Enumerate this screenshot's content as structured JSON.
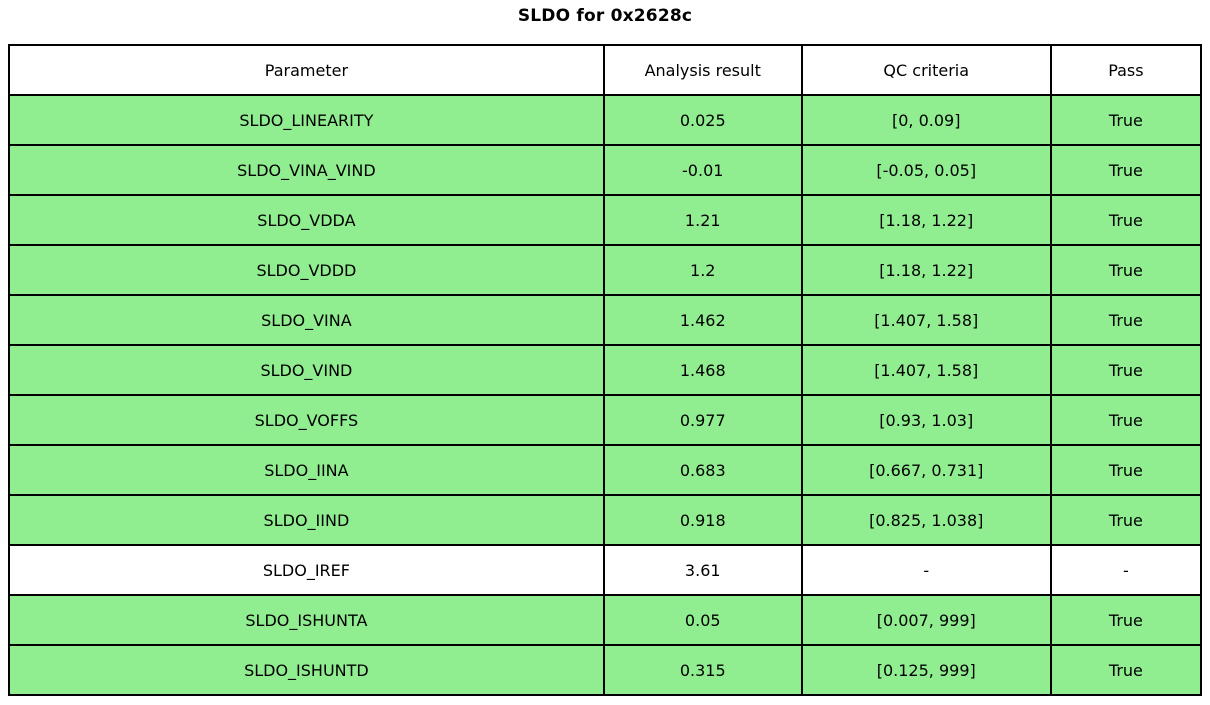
{
  "title": "SLDO for 0x2628c",
  "colors": {
    "pass_row_bg": "#90ee90",
    "neutral_row_bg": "#ffffff",
    "header_bg": "#ffffff",
    "border": "#000000",
    "text": "#000000"
  },
  "chart_data": {
    "type": "table",
    "title": "SLDO for 0x2628c",
    "columns": [
      "Parameter",
      "Analysis result",
      "QC criteria",
      "Pass"
    ],
    "column_widths_pct": [
      49.9,
      16.6,
      20.9,
      12.6
    ],
    "rows": [
      {
        "cells": [
          "SLDO_LINEARITY",
          "0.025",
          "[0, 0.09]",
          "True"
        ],
        "bg": "#90ee90"
      },
      {
        "cells": [
          "SLDO_VINA_VIND",
          "-0.01",
          "[-0.05, 0.05]",
          "True"
        ],
        "bg": "#90ee90"
      },
      {
        "cells": [
          "SLDO_VDDA",
          "1.21",
          "[1.18, 1.22]",
          "True"
        ],
        "bg": "#90ee90"
      },
      {
        "cells": [
          "SLDO_VDDD",
          "1.2",
          "[1.18, 1.22]",
          "True"
        ],
        "bg": "#90ee90"
      },
      {
        "cells": [
          "SLDO_VINA",
          "1.462",
          "[1.407, 1.58]",
          "True"
        ],
        "bg": "#90ee90"
      },
      {
        "cells": [
          "SLDO_VIND",
          "1.468",
          "[1.407, 1.58]",
          "True"
        ],
        "bg": "#90ee90"
      },
      {
        "cells": [
          "SLDO_VOFFS",
          "0.977",
          "[0.93, 1.03]",
          "True"
        ],
        "bg": "#90ee90"
      },
      {
        "cells": [
          "SLDO_IINA",
          "0.683",
          "[0.667, 0.731]",
          "True"
        ],
        "bg": "#90ee90"
      },
      {
        "cells": [
          "SLDO_IIND",
          "0.918",
          "[0.825, 1.038]",
          "True"
        ],
        "bg": "#90ee90"
      },
      {
        "cells": [
          "SLDO_IREF",
          "3.61",
          "-",
          "-"
        ],
        "bg": "#ffffff"
      },
      {
        "cells": [
          "SLDO_ISHUNTA",
          "0.05",
          "[0.007, 999]",
          "True"
        ],
        "bg": "#90ee90"
      },
      {
        "cells": [
          "SLDO_ISHUNTD",
          "0.315",
          "[0.125, 999]",
          "True"
        ],
        "bg": "#90ee90"
      }
    ]
  }
}
